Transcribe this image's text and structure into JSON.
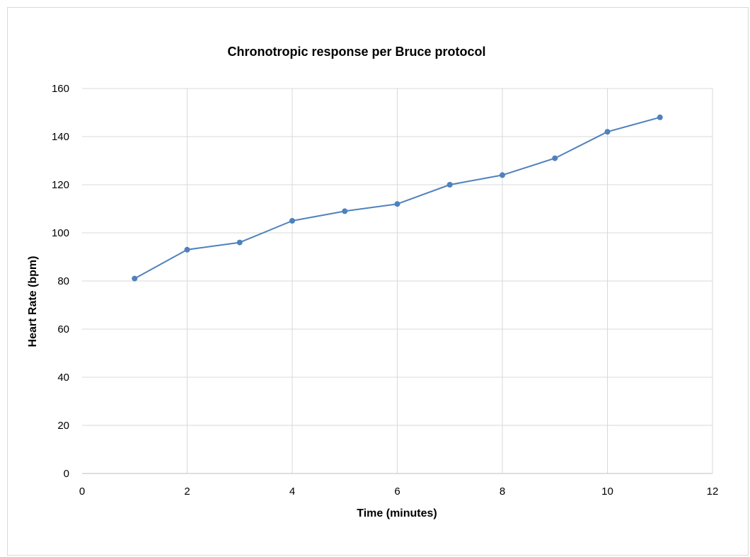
{
  "chart_data": {
    "type": "line",
    "title": "Chronotropic response per Bruce protocol",
    "xlabel": "Time (minutes)",
    "ylabel": "Heart Rate (bpm)",
    "xlim": [
      0,
      12
    ],
    "ylim": [
      0,
      160
    ],
    "xticks": [
      0,
      2,
      4,
      6,
      8,
      10,
      12
    ],
    "yticks": [
      0,
      20,
      40,
      60,
      80,
      100,
      120,
      140,
      160
    ],
    "grid": true,
    "legend": "none",
    "series": [
      {
        "color": "#4f81bd",
        "x": [
          1,
          2,
          3,
          4,
          5,
          6,
          7,
          8,
          9,
          10,
          11
        ],
        "y": [
          81,
          93,
          96,
          105,
          109,
          112,
          120,
          124,
          131,
          142,
          148
        ]
      }
    ]
  }
}
